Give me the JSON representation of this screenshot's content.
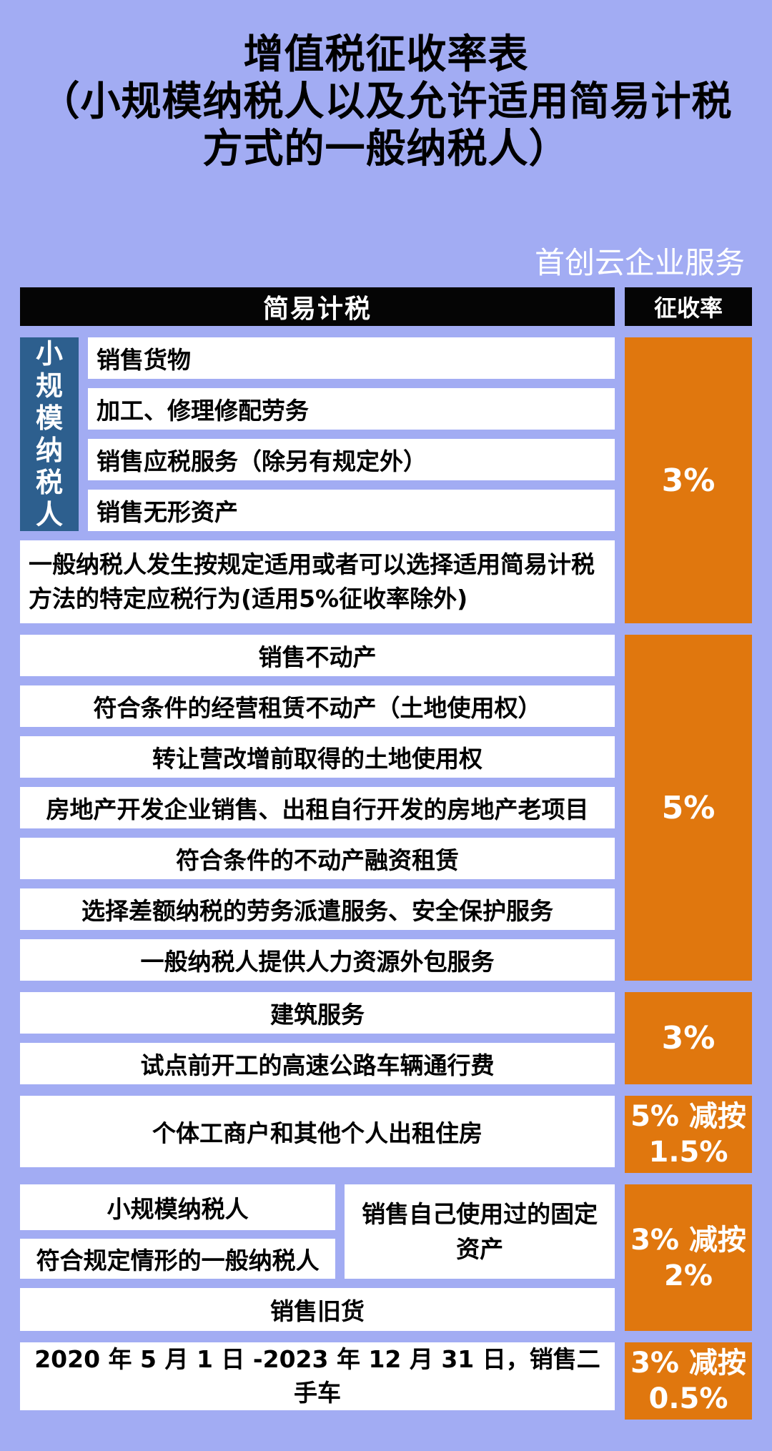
{
  "title": {
    "line1": "增值税征收率表",
    "line2": "（小规模纳税人以及允许适用简易计税",
    "line3": "方式的一般纳税人）"
  },
  "watermark": "首创云企业服务",
  "header": {
    "left": "简易计税",
    "right": "征收率"
  },
  "colors": {
    "background": "#a2acf3",
    "rate_orange": "#e0770e",
    "side_label_blue": "#2d5f8e",
    "header_black": "#050505",
    "row_white": "#ffffff"
  },
  "groups": {
    "g1": {
      "side_label": "小规模纳税人",
      "rows": [
        "销售货物",
        "加工、修理修配劳务",
        "销售应税服务（除另有规定外）",
        "销售无形资产"
      ],
      "note": "一般纳税人发生按规定适用或者可以选择适用简易计税方法的特定应税行为(适用5%征收率除外)",
      "rate": "3%"
    },
    "g2": {
      "rows": [
        "销售不动产",
        "符合条件的经营租赁不动产（土地使用权）",
        "转让营改增前取得的土地使用权",
        "房地产开发企业销售、出租自行开发的房地产老项目",
        "符合条件的不动产融资租赁",
        "选择差额纳税的劳务派遣服务、安全保护服务",
        "一般纳税人提供人力资源外包服务"
      ],
      "rate": "5%"
    },
    "g3": {
      "rows": [
        "建筑服务",
        "试点前开工的高速公路车辆通行费"
      ],
      "rate": "3%"
    },
    "g4": {
      "row": "个体工商户和其他个人出租住房",
      "rate": "5% 减按 1.5%"
    },
    "g5": {
      "left_rows": [
        "小规模纳税人",
        "符合规定情形的一般纳税人"
      ],
      "right_row": "销售自己使用过的固定资产",
      "bottom_row": "销售旧货",
      "rate": "3% 减按 2%"
    },
    "g6": {
      "row": "2020 年 5 月 1 日 -2023 年 12 月 31 日，销售二手车",
      "rate": "3% 减按 0.5%"
    }
  }
}
